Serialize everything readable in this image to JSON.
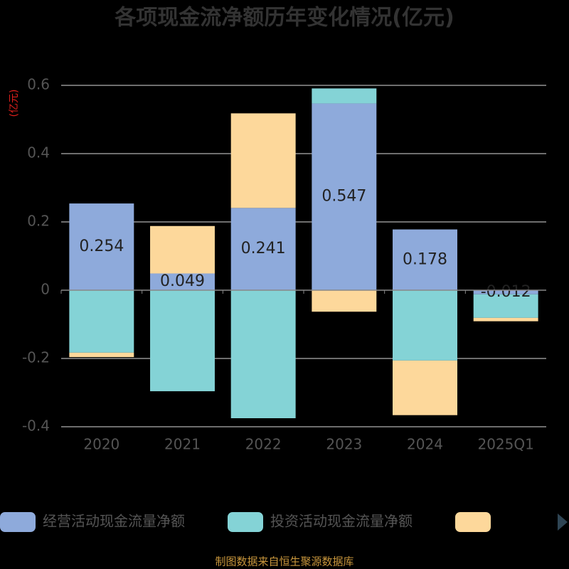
{
  "chart_data": {
    "type": "bar",
    "stacked": true,
    "title": "各项现金流净额历年变化情况(亿元)",
    "y_label": "(亿元)",
    "source": "制图数据来自恒生聚源数据库",
    "categories": [
      "2020",
      "2021",
      "2022",
      "2023",
      "2024",
      "2025Q1"
    ],
    "series": [
      {
        "name": "经营活动现金流量净额",
        "color": "#8eaadb",
        "values": [
          0.254,
          0.049,
          0.241,
          0.547,
          0.178,
          -0.012
        ],
        "data_labels": true
      },
      {
        "name": "投资活动现金流量净额",
        "color": "#84d3d6",
        "values": [
          -0.183,
          -0.296,
          -0.375,
          0.044,
          -0.206,
          -0.069
        ]
      },
      {
        "color": "#fdd89b",
        "values": [
          -0.013,
          0.139,
          0.277,
          -0.063,
          -0.16,
          -0.01
        ]
      }
    ],
    "ylim": [
      -0.4,
      0.6
    ],
    "yticks": [
      -0.4,
      -0.2,
      0,
      0.2,
      0.4,
      0.6
    ],
    "grid": true
  }
}
